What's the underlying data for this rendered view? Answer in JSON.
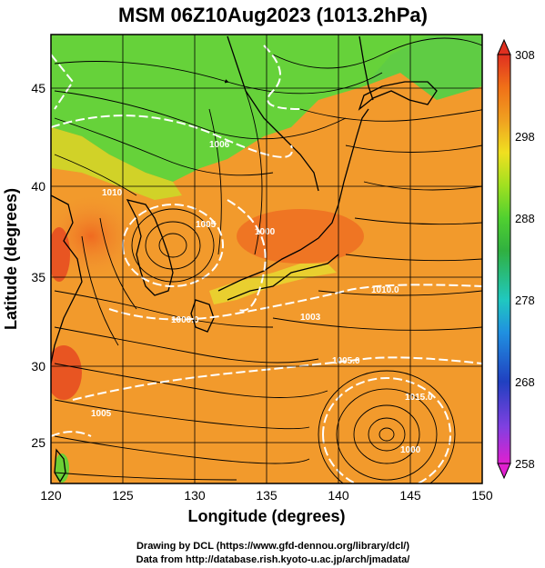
{
  "title": "MSM 06Z10Aug2023 (1013.2hPa)",
  "xaxis": {
    "label": "Longitude (degrees)",
    "range": [
      120,
      150
    ],
    "ticks": [
      120,
      125,
      130,
      135,
      140,
      145,
      150
    ]
  },
  "yaxis": {
    "label": "Latitude (degrees)",
    "range": [
      22.4,
      47.6
    ],
    "ticks": [
      25,
      30,
      35,
      40,
      45
    ]
  },
  "colorbar": {
    "ticks": [
      308,
      298,
      288,
      278,
      268,
      258
    ],
    "range": [
      258,
      308
    ],
    "colors": [
      "#e020d0",
      "#8040e0",
      "#2040c0",
      "#2090e0",
      "#20c8c0",
      "#30b040",
      "#50d030",
      "#a0e020",
      "#f0e020",
      "#f0a020",
      "#f07018",
      "#e03020"
    ]
  },
  "isobars": {
    "color": "#ffffff",
    "labels": [
      "1006",
      "1005",
      "1000",
      "1000.0",
      "1003",
      "1010.0",
      "1005.0",
      "1015.0",
      "1005",
      "1000",
      "1010"
    ]
  },
  "typhoon_center": {
    "lon": 143.5,
    "lat": 26.0
  },
  "low_center": {
    "lon": 127.5,
    "lat": 36.0
  },
  "credits": [
    "Drawing by DCL (https://www.gfd-dennou.org/library/dcl/)",
    "Data from http://database.rish.kyoto-u.ac.jp/arch/jmadata/"
  ]
}
